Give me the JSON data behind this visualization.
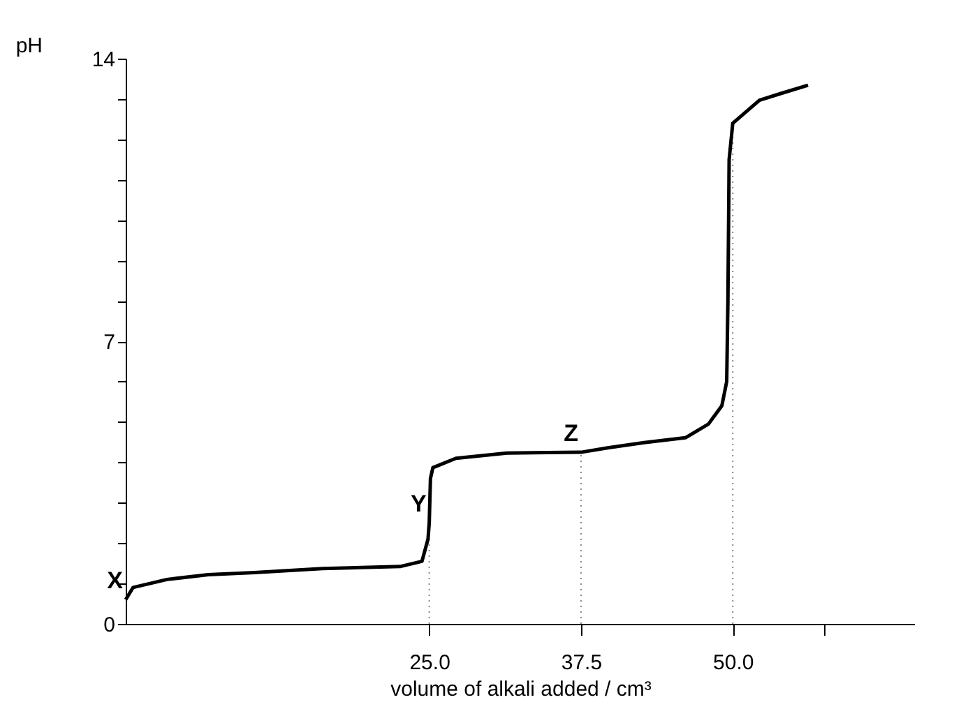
{
  "chart_data": {
    "type": "line",
    "xlabel": "volume of alkali added / cm³",
    "ylabel": "pH",
    "x": [
      0,
      0.6,
      3.4,
      6.8,
      10.6,
      16.2,
      22.6,
      24.4,
      24.9,
      25,
      25.1,
      25.3,
      27.2,
      31.4,
      37.5,
      39.7,
      42.7,
      46.1,
      48,
      49.1,
      49.5,
      49.6,
      49.7,
      50,
      52.2,
      54,
      56.2
    ],
    "series": [
      {
        "color": "#000000",
        "values": [
          0.6,
          0.9,
          1.1,
          1.22,
          1.27,
          1.37,
          1.42,
          1.55,
          2.1,
          2.5,
          3.6,
          3.87,
          4.1,
          4.23,
          4.25,
          4.36,
          4.49,
          4.61,
          4.95,
          5.4,
          6.0,
          8,
          11.5,
          12.4,
          12.97,
          13.14,
          13.34
        ]
      }
    ],
    "xlim": [
      0,
      65
    ],
    "xticks": [
      {
        "value": 25,
        "label": "25.0"
      },
      {
        "value": 37.5,
        "label": "37.5"
      },
      {
        "value": 50,
        "label": "50.0"
      },
      {
        "value": 57.5,
        "label": null
      }
    ],
    "ylim": [
      0,
      14
    ],
    "yticks": [
      0,
      {
        "value": 1,
        "label": null
      },
      {
        "value": 2,
        "label": null
      },
      {
        "value": 3,
        "label": null
      },
      {
        "value": 4,
        "label": null
      },
      {
        "value": 5,
        "label": null
      },
      {
        "value": 6,
        "label": null
      },
      7,
      {
        "value": 8,
        "label": null
      },
      {
        "value": 9,
        "label": null
      },
      {
        "value": 10,
        "label": null
      },
      {
        "value": 11,
        "label": null
      },
      {
        "value": 12,
        "label": null
      },
      {
        "value": 13,
        "label": null
      },
      14
    ],
    "ref_lines": [
      {
        "axis": "x",
        "value": 25,
        "color": "#888888",
        "line_style": "dotted"
      },
      {
        "axis": "x",
        "value": 37.5,
        "color": "#888888",
        "line_style": "dotted"
      },
      {
        "axis": "x",
        "value": 50,
        "color": "#888888",
        "line_style": "dotted"
      }
    ],
    "annotations": [
      {
        "text": "X",
        "x": 0,
        "y": 0.6
      },
      {
        "text": "Y",
        "x": 25,
        "y": 2.5
      },
      {
        "text": "Z",
        "x": 37.5,
        "y": 4.25
      }
    ],
    "grid": false,
    "marker": "none",
    "line_style": "solid"
  }
}
